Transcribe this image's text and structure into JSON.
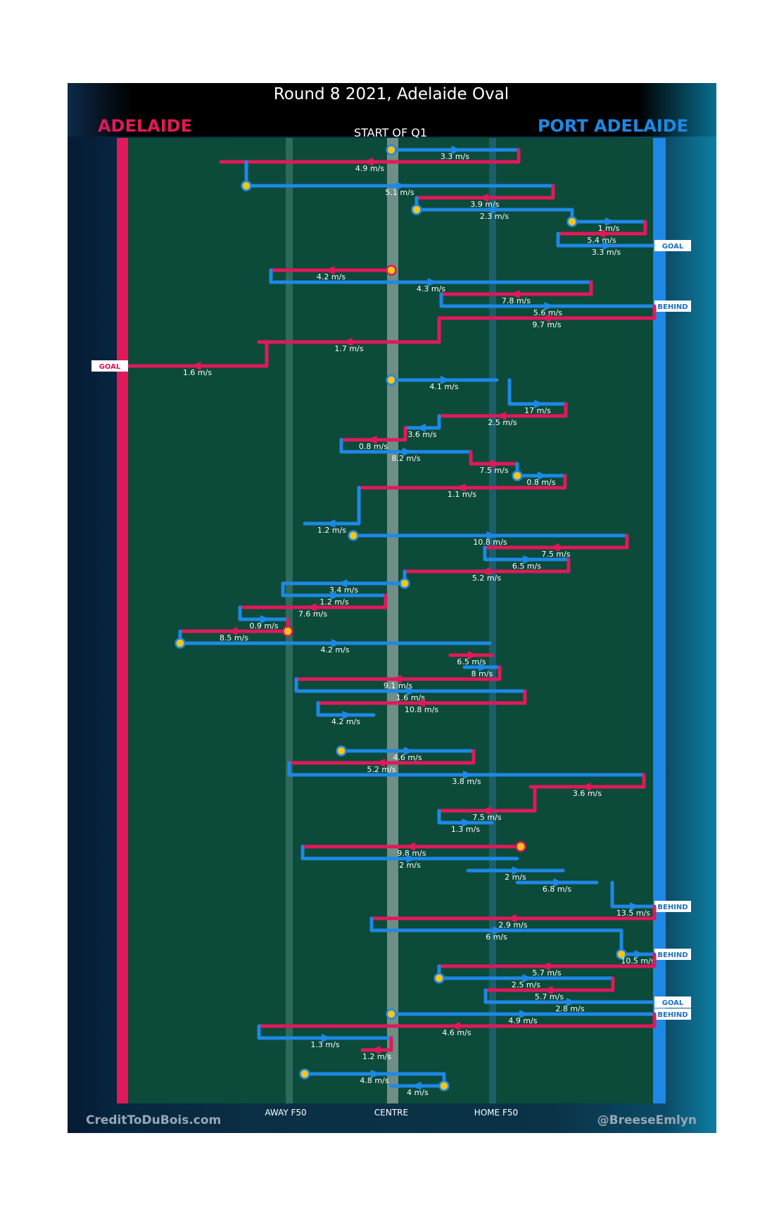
{
  "title": "Round 8 2021, Adelaide Oval",
  "start_label": "START OF Q1",
  "teams": {
    "left": {
      "name": "ADELAIDE",
      "color": "#e0195a"
    },
    "right": {
      "name": "PORT ADELAIDE",
      "color": "#1e88e5"
    }
  },
  "axis_labels": [
    "AWAY F50",
    "CENTRE",
    "HOME F50"
  ],
  "credits": {
    "left": "CreditToDuBois.com",
    "right": "@BreeseEmlyn"
  },
  "colors": {
    "field": "#0c4a3a",
    "adelaide": "#e0195a",
    "port": "#1e88e5",
    "marker": "#f5c518"
  },
  "chart_data": {
    "type": "line",
    "title": "Round 8 2021, Adelaide Oval",
    "x_axis": [
      "ADELAIDE",
      "AWAY F50",
      "CENTRE",
      "HOME F50",
      "PORT ADELAIDE"
    ],
    "series": [
      {
        "name": "ADELAIDE"
      },
      {
        "name": "PORT ADELAIDE"
      }
    ],
    "chains": [
      {
        "team": "port",
        "speed": "3.3 m/s"
      },
      {
        "team": "adl",
        "speed": "4.9 m/s"
      },
      {
        "team": "port",
        "speed": "5.1 m/s"
      },
      {
        "team": "adl",
        "speed": "3.9 m/s"
      },
      {
        "team": "port",
        "speed": "2.3 m/s"
      },
      {
        "team": "port",
        "speed": "1 m/s"
      },
      {
        "team": "adl",
        "speed": "5.4 m/s"
      },
      {
        "team": "port",
        "speed": "3.3 m/s",
        "result": "GOAL"
      },
      {
        "team": "adl",
        "speed": "4.2 m/s"
      },
      {
        "team": "port",
        "speed": "4.3 m/s"
      },
      {
        "team": "adl",
        "speed": "7.8 m/s"
      },
      {
        "team": "port",
        "speed": "5.6 m/s",
        "result": "BEHIND"
      },
      {
        "team": "adl",
        "speed": "9.7 m/s"
      },
      {
        "team": "adl",
        "speed": "1.7 m/s"
      },
      {
        "team": "adl",
        "speed": "1.6 m/s",
        "result": "GOAL"
      },
      {
        "team": "port",
        "speed": "4.1 m/s"
      },
      {
        "team": "port",
        "speed": "17 m/s"
      },
      {
        "team": "adl",
        "speed": "2.5 m/s"
      },
      {
        "team": "port",
        "speed": "3.6 m/s"
      },
      {
        "team": "adl",
        "speed": "0.8 m/s"
      },
      {
        "team": "port",
        "speed": "8.2 m/s"
      },
      {
        "team": "adl",
        "speed": "7.5 m/s"
      },
      {
        "team": "port",
        "speed": "0.8 m/s"
      },
      {
        "team": "adl",
        "speed": "1.1 m/s"
      },
      {
        "team": "port",
        "speed": "1.2 m/s"
      },
      {
        "team": "port",
        "speed": "10.8 m/s"
      },
      {
        "team": "adl",
        "speed": "7.5 m/s"
      },
      {
        "team": "port",
        "speed": "6.5 m/s"
      },
      {
        "team": "adl",
        "speed": "5.2 m/s"
      },
      {
        "team": "port",
        "speed": "3.4 m/s"
      },
      {
        "team": "port",
        "speed": "1.2 m/s"
      },
      {
        "team": "adl",
        "speed": "7.6 m/s"
      },
      {
        "team": "port",
        "speed": "0.9 m/s"
      },
      {
        "team": "adl",
        "speed": "8.5 m/s"
      },
      {
        "team": "port",
        "speed": "4.2 m/s"
      },
      {
        "team": "adl",
        "speed": "6.5 m/s"
      },
      {
        "team": "port",
        "speed": "8 m/s"
      },
      {
        "team": "adl",
        "speed": "9.1 m/s"
      },
      {
        "team": "port",
        "speed": "1.6 m/s"
      },
      {
        "team": "adl",
        "speed": "10.8 m/s"
      },
      {
        "team": "port",
        "speed": "4.2 m/s"
      },
      {
        "team": "port",
        "speed": "4.6 m/s"
      },
      {
        "team": "adl",
        "speed": "5.2 m/s"
      },
      {
        "team": "port",
        "speed": "3.8 m/s"
      },
      {
        "team": "adl",
        "speed": "3.6 m/s"
      },
      {
        "team": "adl",
        "speed": "7.5 m/s"
      },
      {
        "team": "port",
        "speed": "1.3 m/s"
      },
      {
        "team": "adl",
        "speed": "9.8 m/s"
      },
      {
        "team": "port",
        "speed": "2 m/s"
      },
      {
        "team": "port",
        "speed": "2 m/s"
      },
      {
        "team": "port",
        "speed": "6.8 m/s"
      },
      {
        "team": "port",
        "speed": "13.5 m/s",
        "result": "BEHIND"
      },
      {
        "team": "adl",
        "speed": "2.9 m/s"
      },
      {
        "team": "port",
        "speed": "6 m/s"
      },
      {
        "team": "port",
        "speed": "10.5 m/s",
        "result": "BEHIND"
      },
      {
        "team": "adl",
        "speed": "5.7 m/s"
      },
      {
        "team": "port",
        "speed": "2.5 m/s"
      },
      {
        "team": "adl",
        "speed": "5.7 m/s"
      },
      {
        "team": "port",
        "speed": "2.8 m/s",
        "result": "GOAL"
      },
      {
        "team": "port",
        "speed": "4.9 m/s",
        "result": "BEHIND"
      },
      {
        "team": "adl",
        "speed": "4.6 m/s"
      },
      {
        "team": "port",
        "speed": "1.3 m/s"
      },
      {
        "team": "adl",
        "speed": "1.2 m/s"
      },
      {
        "team": "port",
        "speed": "4.8 m/s"
      },
      {
        "team": "port",
        "speed": "4 m/s"
      }
    ]
  }
}
